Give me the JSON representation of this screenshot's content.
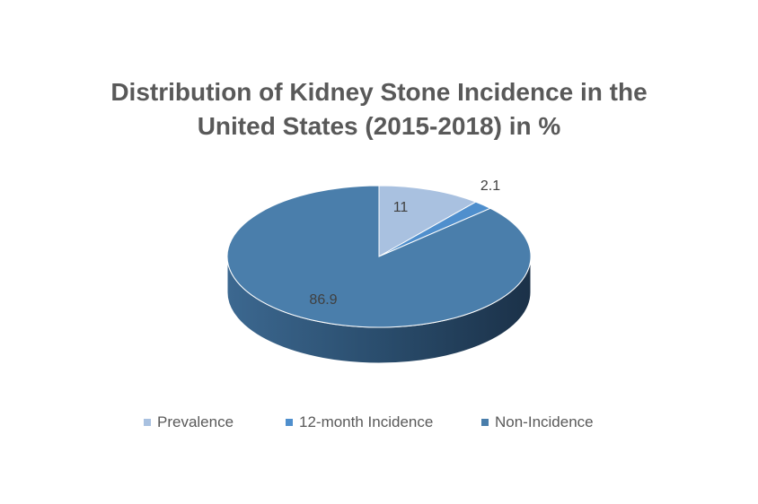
{
  "chart_data": {
    "type": "pie",
    "title_lines": [
      "Distribution of Kidney Stone Incidence in the",
      "United States (2015-2018) in %"
    ],
    "categories": [
      "Prevalence",
      "12-month Incidence",
      "Non-Incidence"
    ],
    "values": [
      11,
      2.1,
      86.9
    ],
    "data_labels": [
      "11",
      "2.1",
      "86.9"
    ],
    "colors": [
      "#a9c1e0",
      "#4f8fcd",
      "#4a7eab"
    ],
    "style": "3d",
    "legend_placement": "bottom"
  }
}
